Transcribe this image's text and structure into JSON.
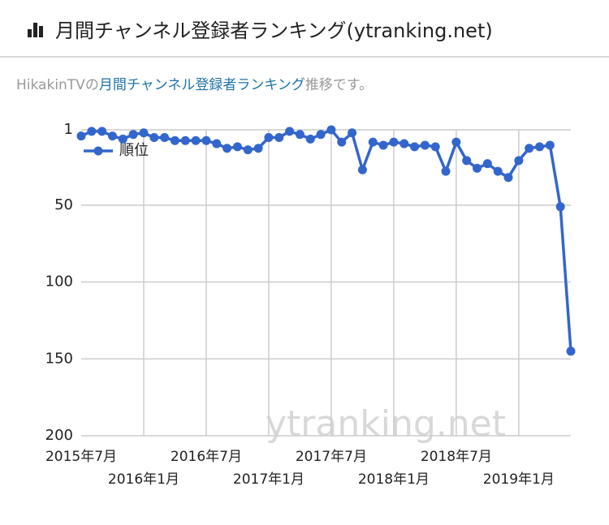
{
  "header": {
    "title": "月間チャンネル登録者ランキング(ytranking.net)"
  },
  "subtitle": {
    "prefix": "HikakinTVの",
    "link": "月間チャンネル登録者ランキング",
    "suffix": "推移です。"
  },
  "chart_data": {
    "type": "line",
    "categories": [
      "2015年7月",
      null,
      null,
      null,
      null,
      null,
      "2016年1月",
      null,
      null,
      null,
      null,
      null,
      "2016年7月",
      null,
      null,
      null,
      null,
      null,
      "2017年1月",
      null,
      null,
      null,
      null,
      null,
      "2017年7月",
      null,
      null,
      null,
      null,
      null,
      "2018年1月",
      null,
      null,
      null,
      null,
      null,
      "2018年7月",
      null,
      null,
      null,
      null,
      null,
      "2019年1月",
      null,
      null,
      null,
      null,
      null
    ],
    "series": [
      {
        "name": "順位",
        "color": "#3366cc",
        "values": [
          5,
          2,
          2,
          5,
          7,
          4,
          3,
          6,
          6,
          8,
          8,
          8,
          8,
          10,
          13,
          12,
          14,
          13,
          6,
          6,
          2,
          4,
          7,
          4,
          1,
          9,
          3,
          27,
          9,
          11,
          9,
          10,
          12,
          11,
          12,
          28,
          9,
          21,
          26,
          23,
          28,
          32,
          21,
          13,
          12,
          11,
          51,
          145
        ]
      }
    ],
    "ylim": [
      200,
      1
    ],
    "yticks": [
      1,
      50,
      100,
      150,
      200
    ],
    "grid": true,
    "legend": "top-left",
    "watermark": "ytranking.net"
  }
}
